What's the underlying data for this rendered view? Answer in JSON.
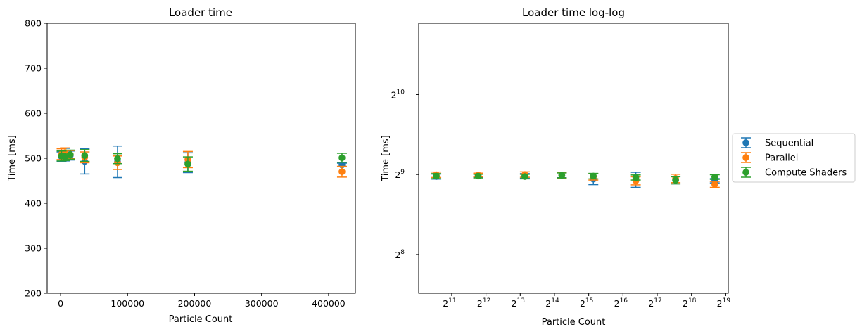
{
  "colors": {
    "sequential": "#1f77b4",
    "parallel": "#ff7f0e",
    "compute": "#2ca02c"
  },
  "legend": {
    "placement": "right-outside",
    "entries": [
      "Sequential",
      "Parallel",
      "Compute Shaders"
    ]
  },
  "chart_data": [
    {
      "type": "scatter",
      "title": "Loader time",
      "xlabel": "Particle Count",
      "ylabel": "Time [ms]",
      "xlim": [
        -20000,
        440000
      ],
      "ylim": [
        200,
        800
      ],
      "xscale": "linear",
      "yscale": "linear",
      "grid": false,
      "xticks": [
        0,
        100000,
        200000,
        300000,
        400000
      ],
      "xtick_labels": [
        "0",
        "100000",
        "200000",
        "300000",
        "400000"
      ],
      "yticks": [
        200,
        300,
        400,
        500,
        600,
        700,
        800
      ],
      "ytick_labels": [
        "200",
        "300",
        "400",
        "500",
        "600",
        "700",
        "800"
      ],
      "error_bars": true,
      "series": [
        {
          "name": "Sequential",
          "color_key": "sequential",
          "points": [
            {
              "x": 1500,
              "y": 503,
              "err": 11
            },
            {
              "x": 6500,
              "y": 508,
              "err": 14
            },
            {
              "x": 14500,
              "y": 506,
              "err": 10
            },
            {
              "x": 36000,
              "y": 493,
              "err": 28
            },
            {
              "x": 85000,
              "y": 492,
              "err": 35
            },
            {
              "x": 190000,
              "y": 490,
              "err": 22
            },
            {
              "x": 420000,
              "y": 485,
              "err": 4
            }
          ]
        },
        {
          "name": "Parallel",
          "color_key": "parallel",
          "points": [
            {
              "x": 1500,
              "y": 509,
              "err": 12
            },
            {
              "x": 6500,
              "y": 512,
              "err": 11
            },
            {
              "x": 14500,
              "y": 508,
              "err": 9
            },
            {
              "x": 36000,
              "y": 502,
              "err": 12
            },
            {
              "x": 85000,
              "y": 490,
              "err": 15
            },
            {
              "x": 190000,
              "y": 497,
              "err": 18
            },
            {
              "x": 420000,
              "y": 470,
              "err": 12
            }
          ]
        },
        {
          "name": "Compute Shaders",
          "color_key": "compute",
          "points": [
            {
              "x": 1500,
              "y": 505,
              "err": 11
            },
            {
              "x": 6500,
              "y": 503,
              "err": 8
            },
            {
              "x": 14500,
              "y": 508,
              "err": 10
            },
            {
              "x": 36000,
              "y": 506,
              "err": 13
            },
            {
              "x": 85000,
              "y": 499,
              "err": 11
            },
            {
              "x": 190000,
              "y": 487,
              "err": 16
            },
            {
              "x": 420000,
              "y": 501,
              "err": 10
            }
          ]
        }
      ]
    },
    {
      "type": "scatter",
      "title": "Loader time log-log",
      "xlabel": "Particle Count",
      "ylabel": "Time [ms]",
      "xscale": "log2",
      "yscale": "log2",
      "xlim": [
        1050,
        552000
      ],
      "ylim": [
        183,
        1900
      ],
      "grid": false,
      "xticks": [
        2048,
        4096,
        8192,
        16384,
        32768,
        65536,
        131072,
        262144,
        524288
      ],
      "xtick_labels": [
        {
          "base": "2",
          "exp": "11"
        },
        {
          "base": "2",
          "exp": "12"
        },
        {
          "base": "2",
          "exp": "13"
        },
        {
          "base": "2",
          "exp": "14"
        },
        {
          "base": "2",
          "exp": "15"
        },
        {
          "base": "2",
          "exp": "16"
        },
        {
          "base": "2",
          "exp": "17"
        },
        {
          "base": "2",
          "exp": "18"
        },
        {
          "base": "2",
          "exp": "19"
        }
      ],
      "yticks": [
        256,
        512,
        1024
      ],
      "ytick_labels": [
        {
          "base": "2",
          "exp": "8"
        },
        {
          "base": "2",
          "exp": "9"
        },
        {
          "base": "2",
          "exp": "10"
        }
      ],
      "error_bars": true,
      "series": [
        {
          "name": "Sequential",
          "color_key": "sequential",
          "points": [
            {
              "x": 1500,
              "y": 503,
              "err": 11
            },
            {
              "x": 3500,
              "y": 508,
              "err": 8
            },
            {
              "x": 9000,
              "y": 506,
              "err": 10
            },
            {
              "x": 19000,
              "y": 510,
              "err": 12
            },
            {
              "x": 36000,
              "y": 492,
              "err": 23
            },
            {
              "x": 85000,
              "y": 490,
              "err": 32
            },
            {
              "x": 190000,
              "y": 488,
              "err": 16
            },
            {
              "x": 420000,
              "y": 485,
              "err": 9
            }
          ]
        },
        {
          "name": "Parallel",
          "color_key": "parallel",
          "points": [
            {
              "x": 1500,
              "y": 511,
              "err": 12
            },
            {
              "x": 3500,
              "y": 510,
              "err": 8
            },
            {
              "x": 9000,
              "y": 512,
              "err": 12
            },
            {
              "x": 19000,
              "y": 508,
              "err": 12
            },
            {
              "x": 36000,
              "y": 502,
              "err": 14
            },
            {
              "x": 85000,
              "y": 485,
              "err": 17
            },
            {
              "x": 190000,
              "y": 495,
              "err": 18
            },
            {
              "x": 420000,
              "y": 470,
              "err": 12
            }
          ]
        },
        {
          "name": "Compute Shaders",
          "color_key": "compute",
          "points": [
            {
              "x": 1500,
              "y": 505,
              "err": 11
            },
            {
              "x": 3500,
              "y": 505,
              "err": 8
            },
            {
              "x": 9000,
              "y": 503,
              "err": 10
            },
            {
              "x": 19000,
              "y": 508,
              "err": 11
            },
            {
              "x": 36000,
              "y": 505,
              "err": 12
            },
            {
              "x": 85000,
              "y": 499,
              "err": 11
            },
            {
              "x": 190000,
              "y": 487,
              "err": 15
            },
            {
              "x": 420000,
              "y": 501,
              "err": 10
            }
          ]
        }
      ]
    }
  ]
}
